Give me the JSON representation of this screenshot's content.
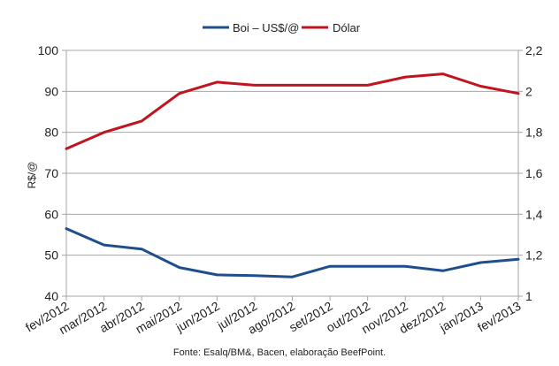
{
  "chart_data": {
    "type": "line",
    "legend": {
      "placement": "top"
    },
    "grid": {
      "horizontal": true,
      "vertical": false
    },
    "categories": [
      "fev/2012",
      "mar/2012",
      "abr/2012",
      "mai/2012",
      "jun/2012",
      "jul/2012",
      "ago/2012",
      "set/2012",
      "out/2012",
      "nov/2012",
      "dez/2012",
      "jan/2013",
      "fev/2013"
    ],
    "ylabel": "R$/@",
    "ylim": [
      40,
      100
    ],
    "yticks": [
      "40",
      "50",
      "60",
      "70",
      "80",
      "90",
      "100"
    ],
    "y2lim": [
      1,
      2.2
    ],
    "y2ticks": [
      "1",
      "1,2",
      "1,4",
      "1,6",
      "1,8",
      "2",
      "2,2"
    ],
    "series": [
      {
        "name": "Boi – US$/@",
        "axis": "left",
        "color": "#1f4e8c",
        "values": [
          56.5,
          52.5,
          51.5,
          47,
          45.2,
          45,
          44.7,
          47.3,
          47.3,
          47.3,
          46.2,
          48.2,
          49
        ]
      },
      {
        "name": "Dólar",
        "axis": "right",
        "color": "#c0141f",
        "values": [
          1.72,
          1.8,
          1.855,
          1.99,
          2.045,
          2.03,
          2.03,
          2.03,
          2.03,
          2.07,
          2.085,
          2.025,
          1.99
        ]
      }
    ],
    "note": "Fonte: Esalq/BM&, Bacen, elaboração BeefPoint."
  }
}
